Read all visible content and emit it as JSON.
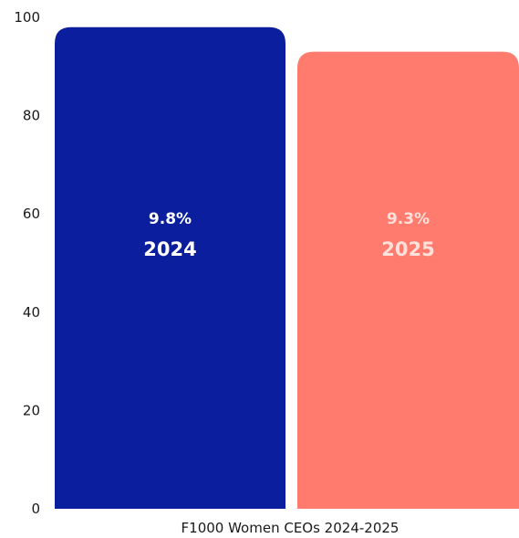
{
  "chart_data": {
    "type": "bar",
    "title": "",
    "xlabel": "F1000 Women CEOs 2024-2025",
    "ylabel": "",
    "ylim": [
      0,
      100
    ],
    "yticks": [
      "0",
      "20",
      "40",
      "60",
      "80",
      "100"
    ],
    "grid": false,
    "categories": [
      "2024",
      "2025"
    ],
    "values": [
      98,
      93
    ],
    "data_labels": [
      "9.8%",
      "9.3%"
    ],
    "colors": [
      "#0B1F9E",
      "#FF7B6E"
    ],
    "label_colors": [
      "#ffffff",
      "#FFE1DC"
    ]
  }
}
